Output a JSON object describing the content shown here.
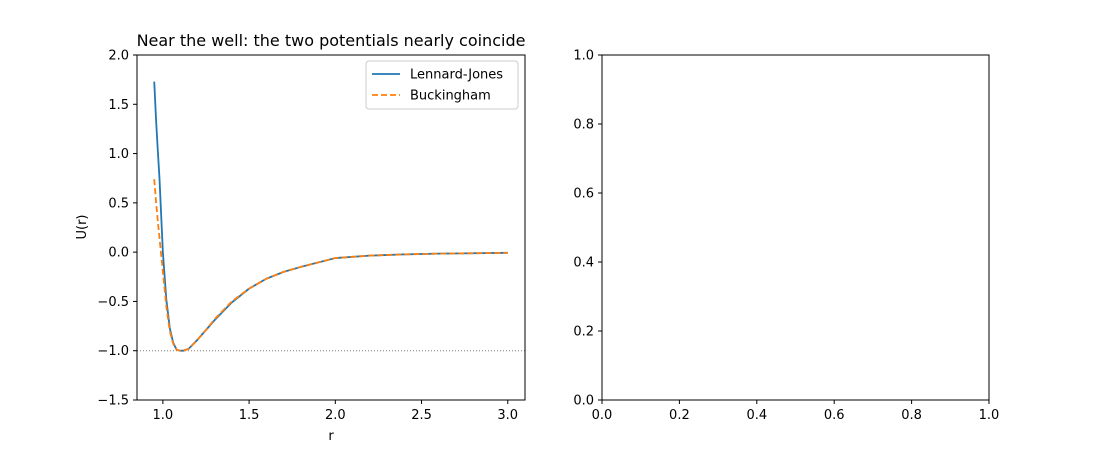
{
  "chart_data": [
    {
      "type": "line",
      "title": "Near the well: the two potentials nearly coincide",
      "xlabel": "r",
      "ylabel": "U(r)",
      "xlim": [
        0.85,
        3.1
      ],
      "ylim": [
        -1.5,
        2.0
      ],
      "xticks": [
        "1.0",
        "1.5",
        "2.0",
        "2.5",
        "3.0"
      ],
      "yticks": [
        "−1.5",
        "−1.0",
        "−0.5",
        "0.0",
        "0.5",
        "1.0",
        "1.5",
        "2.0"
      ],
      "grid": false,
      "legend": "top-right",
      "reference_line": {
        "y": -1.0,
        "style": "dotted",
        "color": "#808080"
      },
      "series": [
        {
          "name": "Lennard-Jones",
          "color": "#1f77b4",
          "style": "solid",
          "x": [
            0.95,
            0.96,
            0.97,
            0.98,
            1.0,
            1.02,
            1.04,
            1.06,
            1.08,
            1.1,
            1.12,
            1.15,
            1.2,
            1.25,
            1.3,
            1.4,
            1.5,
            1.6,
            1.7,
            1.8,
            2.0,
            2.2,
            2.4,
            2.6,
            2.8,
            3.0
          ],
          "y": [
            1.73,
            1.36,
            1.05,
            0.76,
            0.0,
            -0.48,
            -0.77,
            -0.92,
            -0.99,
            -1.0,
            -1.0,
            -0.98,
            -0.89,
            -0.79,
            -0.69,
            -0.51,
            -0.37,
            -0.27,
            -0.2,
            -0.15,
            -0.06,
            -0.035,
            -0.023,
            -0.015,
            -0.011,
            -0.007
          ]
        },
        {
          "name": "Buckingham",
          "color": "#ff7f0e",
          "style": "dashed",
          "x": [
            0.95,
            0.96,
            0.97,
            0.98,
            1.0,
            1.02,
            1.04,
            1.06,
            1.08,
            1.1,
            1.12,
            1.15,
            1.2,
            1.25,
            1.3,
            1.4,
            1.5,
            1.6,
            1.7,
            1.8,
            2.0,
            2.2,
            2.4,
            2.6,
            2.8,
            3.0
          ],
          "y": [
            0.74,
            0.52,
            0.33,
            0.15,
            -0.2,
            -0.55,
            -0.8,
            -0.93,
            -0.99,
            -1.0,
            -1.0,
            -0.98,
            -0.89,
            -0.79,
            -0.68,
            -0.5,
            -0.37,
            -0.27,
            -0.2,
            -0.15,
            -0.06,
            -0.035,
            -0.023,
            -0.015,
            -0.011,
            -0.007
          ]
        }
      ]
    },
    {
      "type": "line",
      "title": "",
      "xlabel": "",
      "ylabel": "",
      "xlim": [
        0.0,
        1.0
      ],
      "ylim": [
        0.0,
        1.0
      ],
      "xticks": [
        "0.0",
        "0.2",
        "0.4",
        "0.6",
        "0.8",
        "1.0"
      ],
      "yticks": [
        "0.0",
        "0.2",
        "0.4",
        "0.6",
        "0.8",
        "1.0"
      ],
      "grid": false,
      "series": []
    }
  ]
}
